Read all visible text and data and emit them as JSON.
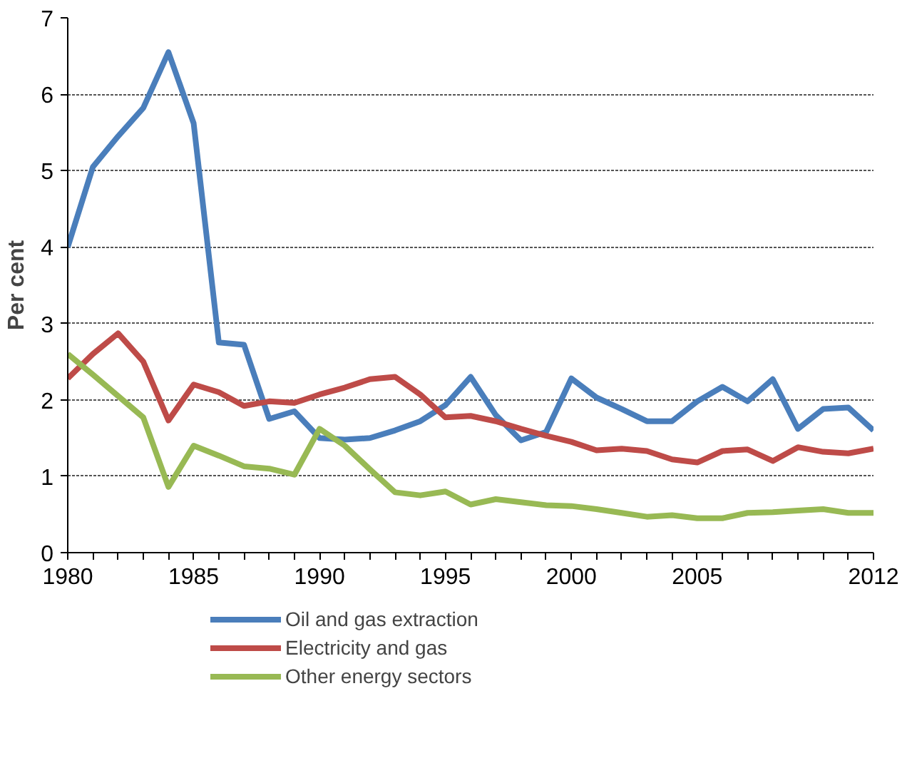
{
  "chart_data": {
    "type": "line",
    "ylabel": "Per cent",
    "x": [
      1980,
      1981,
      1982,
      1983,
      1984,
      1985,
      1986,
      1987,
      1988,
      1989,
      1990,
      1991,
      1992,
      1993,
      1994,
      1995,
      1996,
      1997,
      1998,
      1999,
      2000,
      2001,
      2002,
      2003,
      2004,
      2005,
      2006,
      2007,
      2008,
      2009,
      2010,
      2011,
      2012
    ],
    "series": [
      {
        "name": "Oil and gas extraction",
        "color": "#4a7ebb",
        "values": [
          4.0,
          5.05,
          5.45,
          5.82,
          6.55,
          5.62,
          2.75,
          2.72,
          1.75,
          1.85,
          1.5,
          1.48,
          1.5,
          1.6,
          1.72,
          1.93,
          2.3,
          1.8,
          1.47,
          1.58,
          2.28,
          2.03,
          1.88,
          1.72,
          1.72,
          1.98,
          2.17,
          1.98,
          2.27,
          1.62,
          1.88,
          1.9,
          1.6
        ]
      },
      {
        "name": "Electricity and gas",
        "color": "#be4b48",
        "values": [
          2.28,
          2.6,
          2.87,
          2.5,
          1.73,
          2.2,
          2.1,
          1.92,
          1.98,
          1.96,
          2.07,
          2.16,
          2.27,
          2.3,
          2.07,
          1.77,
          1.79,
          1.72,
          1.62,
          1.53,
          1.45,
          1.34,
          1.36,
          1.33,
          1.22,
          1.18,
          1.33,
          1.35,
          1.2,
          1.38,
          1.32,
          1.3,
          1.36
        ]
      },
      {
        "name": "Other energy sectors",
        "color": "#98b954",
        "values": [
          2.6,
          2.33,
          2.05,
          1.77,
          0.86,
          1.4,
          1.27,
          1.13,
          1.1,
          1.02,
          1.62,
          1.4,
          1.09,
          0.79,
          0.75,
          0.8,
          0.63,
          0.7,
          0.66,
          0.62,
          0.61,
          0.57,
          0.52,
          0.47,
          0.49,
          0.45,
          0.45,
          0.52,
          0.53,
          0.55,
          0.57,
          0.52,
          0.52
        ]
      }
    ],
    "xlim": [
      1980,
      2012
    ],
    "ylim": [
      0,
      7
    ],
    "xticks": [
      1980,
      {
        "value": 1981,
        "label": null
      },
      {
        "value": 1982,
        "label": null
      },
      {
        "value": 1983,
        "label": null
      },
      {
        "value": 1984,
        "label": null
      },
      1985,
      {
        "value": 1986,
        "label": null
      },
      {
        "value": 1987,
        "label": null
      },
      {
        "value": 1988,
        "label": null
      },
      {
        "value": 1989,
        "label": null
      },
      1990,
      {
        "value": 1991,
        "label": null
      },
      {
        "value": 1992,
        "label": null
      },
      {
        "value": 1993,
        "label": null
      },
      {
        "value": 1994,
        "label": null
      },
      1995,
      {
        "value": 1996,
        "label": null
      },
      {
        "value": 1997,
        "label": null
      },
      {
        "value": 1998,
        "label": null
      },
      {
        "value": 1999,
        "label": null
      },
      2000,
      {
        "value": 2001,
        "label": null
      },
      {
        "value": 2002,
        "label": null
      },
      {
        "value": 2003,
        "label": null
      },
      {
        "value": 2004,
        "label": null
      },
      2005,
      {
        "value": 2006,
        "label": null
      },
      {
        "value": 2007,
        "label": null
      },
      {
        "value": 2008,
        "label": null
      },
      {
        "value": 2009,
        "label": null
      },
      {
        "value": 2010,
        "label": null
      },
      {
        "value": 2011,
        "label": null
      },
      2012
    ],
    "yticks": [
      0,
      1,
      2,
      3,
      4,
      5,
      6,
      7
    ],
    "grid": "y",
    "legend": "bottom",
    "marker": "none",
    "line_style": "solid"
  }
}
